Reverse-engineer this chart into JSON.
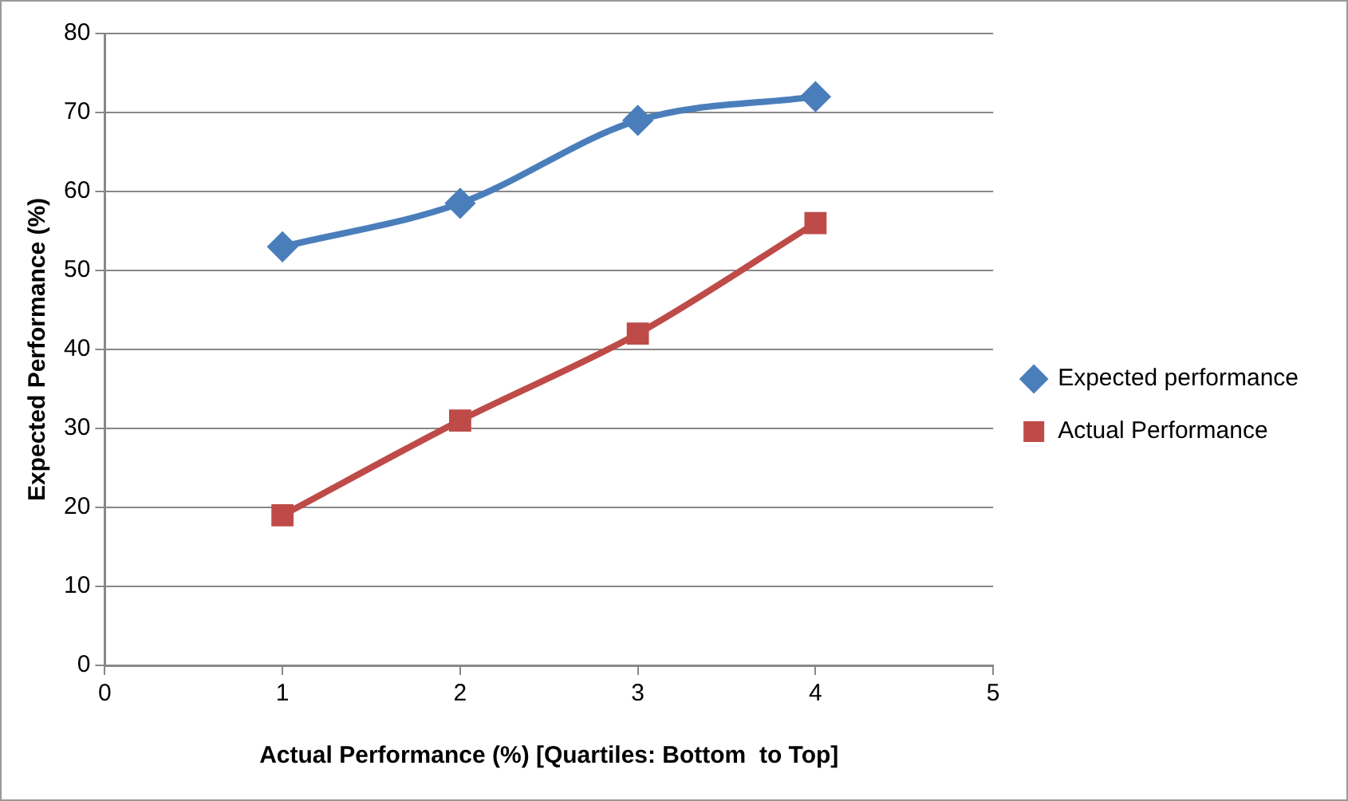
{
  "chart_data": {
    "type": "line",
    "xlabel": "Actual Performance (%) [Quartiles: Bottom  to Top]",
    "ylabel": "Expected Performance (%)",
    "x": [
      1,
      2,
      3,
      4
    ],
    "series": [
      {
        "name": "Expected performance",
        "color": "#4a7ebb",
        "values": [
          53,
          58.5,
          69,
          72
        ],
        "marker": "diamond"
      },
      {
        "name": "Actual Performance",
        "color": "#be4b48",
        "values": [
          19,
          31,
          42,
          56
        ],
        "marker": "square"
      }
    ],
    "xlim": [
      0,
      5
    ],
    "xticks": [
      0,
      1,
      2,
      3,
      4,
      5
    ],
    "ylim": [
      0,
      80
    ],
    "yticks": [
      0,
      10,
      20,
      30,
      40,
      50,
      60,
      70,
      80
    ],
    "grid": "y",
    "legend": "right",
    "line_style": "solid"
  }
}
